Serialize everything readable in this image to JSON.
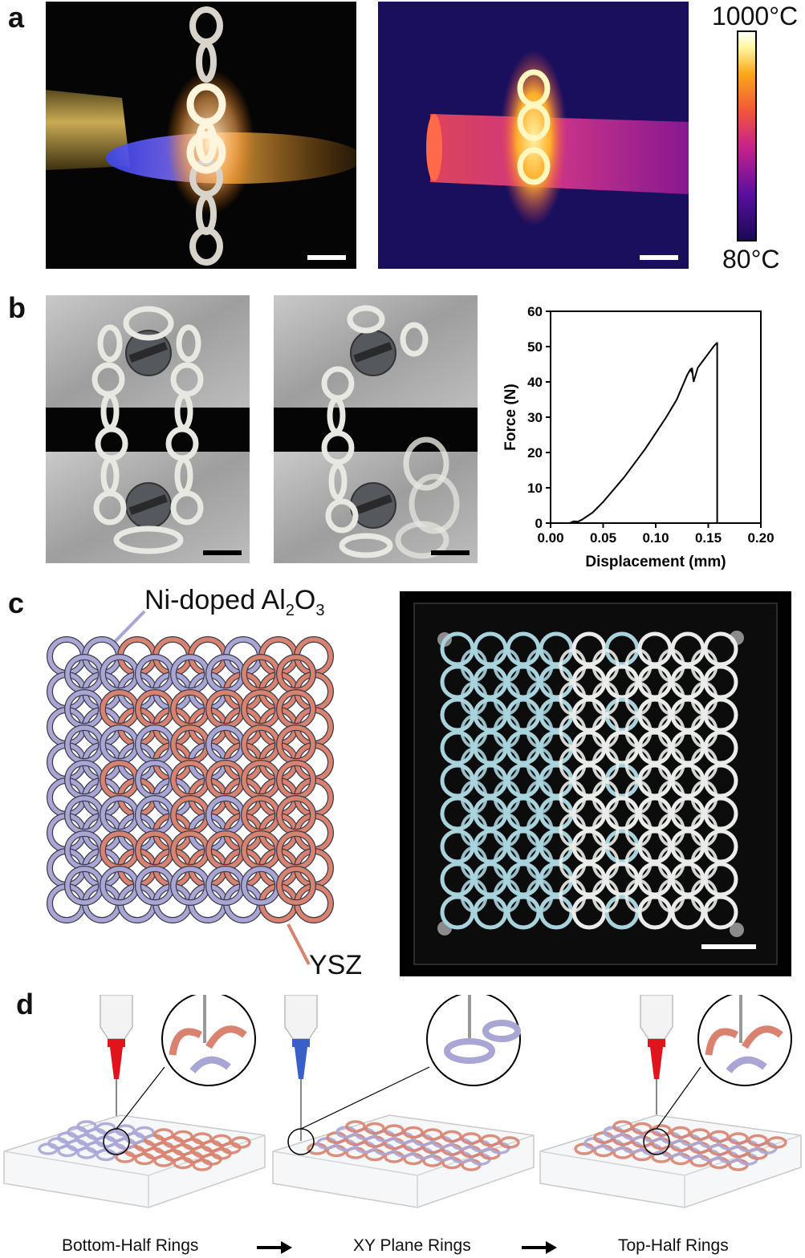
{
  "panels": {
    "a": {
      "letter": "a",
      "colorbar": {
        "max_label": "1000°C",
        "min_label": "80°C"
      }
    },
    "b": {
      "letter": "b"
    },
    "c": {
      "letter": "c",
      "material_a_label_main": "Ni-doped Al",
      "material_a_sub1": "2",
      "material_a_mid": "O",
      "material_a_sub2": "3",
      "material_b_label": "YSZ",
      "colors": {
        "alumina": "#a9a6d6",
        "ysz": "#d9826f"
      }
    },
    "d": {
      "letter": "d",
      "steps": [
        "Bottom-Half Rings",
        "XY Plane Rings",
        "Top-Half Rings"
      ]
    }
  },
  "chart_data": {
    "type": "line",
    "title": "",
    "xlabel": "Displacement (mm)",
    "ylabel": "Force (N)",
    "xlim": [
      0.0,
      0.2
    ],
    "ylim": [
      0,
      60
    ],
    "xticks": [
      "0.00",
      "0.05",
      "0.10",
      "0.15",
      "0.20"
    ],
    "yticks": [
      "0",
      "10",
      "20",
      "30",
      "40",
      "50",
      "60"
    ],
    "grid": false,
    "series": [
      {
        "x": [
          0.0,
          0.018,
          0.022,
          0.026,
          0.03,
          0.04,
          0.05,
          0.06,
          0.07,
          0.08,
          0.09,
          0.1,
          0.11,
          0.12,
          0.13,
          0.133,
          0.134,
          0.1345,
          0.136,
          0.14,
          0.145,
          0.15,
          0.155,
          0.158,
          0.1585,
          0.1585
        ],
        "y": [
          0,
          0,
          0.5,
          0.4,
          1,
          3,
          6,
          9.5,
          13,
          17,
          21,
          25.5,
          30,
          35,
          42,
          43.5,
          43,
          44,
          40,
          44,
          46,
          48,
          50,
          51,
          51,
          0
        ]
      }
    ]
  }
}
